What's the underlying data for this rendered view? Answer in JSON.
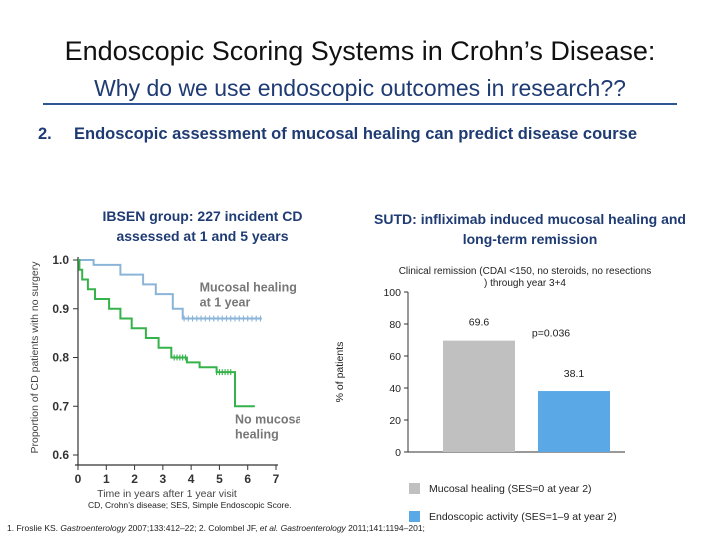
{
  "header": {
    "title": "Endoscopic Scoring Systems in Crohn’s Disease:",
    "subtitle": "Why do we use endoscopic outcomes in research??"
  },
  "section": {
    "number": "2.",
    "heading": "Endoscopic assessment of mucosal healing can predict disease course"
  },
  "chart_data": [
    {
      "type": "line",
      "title": "IBSEN group: 227 incident CD assessed at 1 and 5 years",
      "xlabel": "Time in years after 1 year visit",
      "ylabel": "Proportion of CD patients with no surgery",
      "xlim": [
        0,
        7
      ],
      "ylim": [
        0.6,
        1.0
      ],
      "xticks": [
        0,
        1,
        2,
        3,
        4,
        5,
        6,
        7
      ],
      "yticks": [
        "0.6",
        "0.7",
        "0.8",
        "0.9",
        "1.0"
      ],
      "grid": false,
      "series": [
        {
          "name": "Mucosal healing at 1 year",
          "color": "#8ab4d8",
          "x": [
            0,
            0.55,
            0.55,
            1.5,
            1.5,
            2.3,
            2.3,
            2.75,
            2.75,
            3.35,
            3.35,
            3.7,
            3.7,
            6.5
          ],
          "y": [
            1.0,
            1.0,
            0.99,
            0.99,
            0.97,
            0.97,
            0.95,
            0.95,
            0.93,
            0.93,
            0.9,
            0.9,
            0.88,
            0.88
          ]
        },
        {
          "name": "No mucosal healing",
          "color": "#35b34a",
          "x": [
            0,
            0.05,
            0.05,
            0.15,
            0.15,
            0.35,
            0.35,
            0.6,
            0.6,
            1.1,
            1.1,
            1.5,
            1.5,
            1.9,
            1.9,
            2.4,
            2.4,
            2.85,
            2.85,
            3.3,
            3.3,
            3.85,
            3.85,
            4.3,
            4.3,
            4.9,
            4.9,
            5.55,
            5.55,
            6.25
          ],
          "y": [
            1.0,
            1.0,
            0.98,
            0.98,
            0.96,
            0.96,
            0.94,
            0.94,
            0.92,
            0.92,
            0.9,
            0.9,
            0.88,
            0.88,
            0.86,
            0.86,
            0.84,
            0.84,
            0.82,
            0.82,
            0.8,
            0.8,
            0.79,
            0.79,
            0.78,
            0.78,
            0.77,
            0.77,
            0.7,
            0.7
          ]
        }
      ],
      "annotations": [
        {
          "text": "Mucosal healing at 1 year",
          "color": "#777777"
        },
        {
          "text": "No mucosal healing",
          "color": "#777777"
        }
      ]
    },
    {
      "type": "bar",
      "title": "SUTD: infliximab induced mucosal healing and long-term remission",
      "plot_title": "Clinical remission (CDAI <150, no steroids, no resections) through year 3+4",
      "ylabel": "% of patients",
      "ylim": [
        0,
        100
      ],
      "yticks": [
        "0",
        "20",
        "40",
        "60",
        "80",
        "100"
      ],
      "categories": [
        "Mucosal healing (SES=0 at year 2)",
        "Endoscopic activity (SES=1–9 at year 2)"
      ],
      "values": [
        69.6,
        38.1
      ],
      "value_labels": [
        "69.6",
        "38.1"
      ],
      "colors": [
        "#c0c0c0",
        "#5aa9e6"
      ],
      "pvalue": "p=0.036",
      "legend_position": "bottom"
    }
  ],
  "footnotes": {
    "abbrev": "CD, Crohn’s disease; SES, Simple Endoscopic Score.",
    "ref_prefix": "1. Froslie KS. ",
    "ref1_journal": "Gastroenterology",
    "ref1_rest": " 2007;133:412–22; 2. Colombel JF, ",
    "ref2_etal": "et al.",
    "ref2_journal": " Gastroenterology",
    "ref2_rest": " 2011;141:1194–201;"
  }
}
